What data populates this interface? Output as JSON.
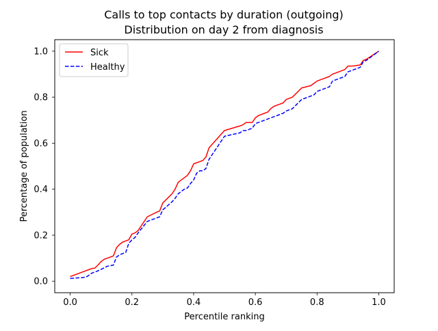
{
  "chart_data": {
    "type": "line",
    "title": "Calls to top contacts by duration (outgoing)",
    "subtitle": "Distribution on day 2 from diagnosis",
    "xlabel": "Percentile ranking",
    "ylabel": "Percentage of population",
    "xlim": [
      -0.05,
      1.05
    ],
    "ylim": [
      -0.05,
      1.05
    ],
    "x_ticks": [
      "0.0",
      "0.2",
      "0.4",
      "0.6",
      "0.8",
      "1.0"
    ],
    "y_ticks": [
      "0.0",
      "0.2",
      "0.4",
      "0.6",
      "0.8",
      "1.0"
    ],
    "grid": false,
    "legend_position": "top-left",
    "series": [
      {
        "name": "Sick",
        "color": "#ff0000",
        "style": "solid",
        "x": [
          0.0,
          0.06,
          0.07,
          0.08,
          0.09,
          0.1,
          0.11,
          0.12,
          0.14,
          0.15,
          0.16,
          0.17,
          0.18,
          0.19,
          0.2,
          0.21,
          0.22,
          0.25,
          0.28,
          0.29,
          0.3,
          0.33,
          0.34,
          0.35,
          0.36,
          0.37,
          0.38,
          0.39,
          0.4,
          0.42,
          0.43,
          0.44,
          0.45,
          0.5,
          0.55,
          0.56,
          0.57,
          0.58,
          0.59,
          0.6,
          0.61,
          0.62,
          0.63,
          0.64,
          0.65,
          0.66,
          0.67,
          0.68,
          0.69,
          0.7,
          0.71,
          0.72,
          0.75,
          0.78,
          0.79,
          0.8,
          0.81,
          0.82,
          0.83,
          0.84,
          0.85,
          0.86,
          0.87,
          0.88,
          0.89,
          0.9,
          0.91,
          0.92,
          0.93,
          0.94,
          0.95,
          0.96,
          1.0
        ],
        "y": [
          0.02,
          0.05,
          0.055,
          0.057,
          0.07,
          0.085,
          0.095,
          0.1,
          0.11,
          0.145,
          0.16,
          0.17,
          0.175,
          0.18,
          0.205,
          0.21,
          0.22,
          0.28,
          0.3,
          0.305,
          0.34,
          0.38,
          0.4,
          0.43,
          0.44,
          0.45,
          0.46,
          0.48,
          0.51,
          0.52,
          0.525,
          0.54,
          0.58,
          0.655,
          0.675,
          0.68,
          0.69,
          0.69,
          0.69,
          0.71,
          0.72,
          0.725,
          0.73,
          0.735,
          0.75,
          0.76,
          0.765,
          0.77,
          0.775,
          0.79,
          0.795,
          0.8,
          0.84,
          0.85,
          0.86,
          0.87,
          0.875,
          0.88,
          0.885,
          0.89,
          0.9,
          0.905,
          0.91,
          0.915,
          0.92,
          0.935,
          0.935,
          0.936,
          0.938,
          0.94,
          0.96,
          0.965,
          1.0
        ]
      },
      {
        "name": "Healthy",
        "color": "#0000ff",
        "style": "dashed",
        "x": [
          0.0,
          0.02,
          0.05,
          0.06,
          0.07,
          0.09,
          0.11,
          0.12,
          0.14,
          0.15,
          0.16,
          0.17,
          0.18,
          0.19,
          0.2,
          0.21,
          0.22,
          0.25,
          0.28,
          0.29,
          0.3,
          0.33,
          0.34,
          0.35,
          0.37,
          0.38,
          0.39,
          0.4,
          0.41,
          0.42,
          0.43,
          0.44,
          0.45,
          0.5,
          0.55,
          0.56,
          0.57,
          0.58,
          0.59,
          0.6,
          0.61,
          0.62,
          0.63,
          0.64,
          0.65,
          0.66,
          0.67,
          0.68,
          0.69,
          0.7,
          0.71,
          0.72,
          0.75,
          0.78,
          0.79,
          0.8,
          0.81,
          0.82,
          0.83,
          0.84,
          0.85,
          0.86,
          0.87,
          0.88,
          0.89,
          0.9,
          0.91,
          0.92,
          0.93,
          0.94,
          0.95,
          0.96,
          1.0
        ],
        "y": [
          0.012,
          0.014,
          0.017,
          0.025,
          0.035,
          0.045,
          0.058,
          0.065,
          0.07,
          0.105,
          0.115,
          0.12,
          0.125,
          0.165,
          0.18,
          0.19,
          0.21,
          0.26,
          0.275,
          0.28,
          0.31,
          0.345,
          0.36,
          0.38,
          0.4,
          0.405,
          0.425,
          0.44,
          0.47,
          0.48,
          0.48,
          0.49,
          0.53,
          0.63,
          0.645,
          0.655,
          0.655,
          0.66,
          0.665,
          0.685,
          0.69,
          0.695,
          0.7,
          0.705,
          0.71,
          0.715,
          0.72,
          0.725,
          0.73,
          0.74,
          0.745,
          0.75,
          0.79,
          0.805,
          0.81,
          0.825,
          0.83,
          0.835,
          0.84,
          0.845,
          0.87,
          0.875,
          0.88,
          0.885,
          0.89,
          0.91,
          0.915,
          0.92,
          0.925,
          0.93,
          0.955,
          0.96,
          1.0
        ]
      }
    ]
  }
}
